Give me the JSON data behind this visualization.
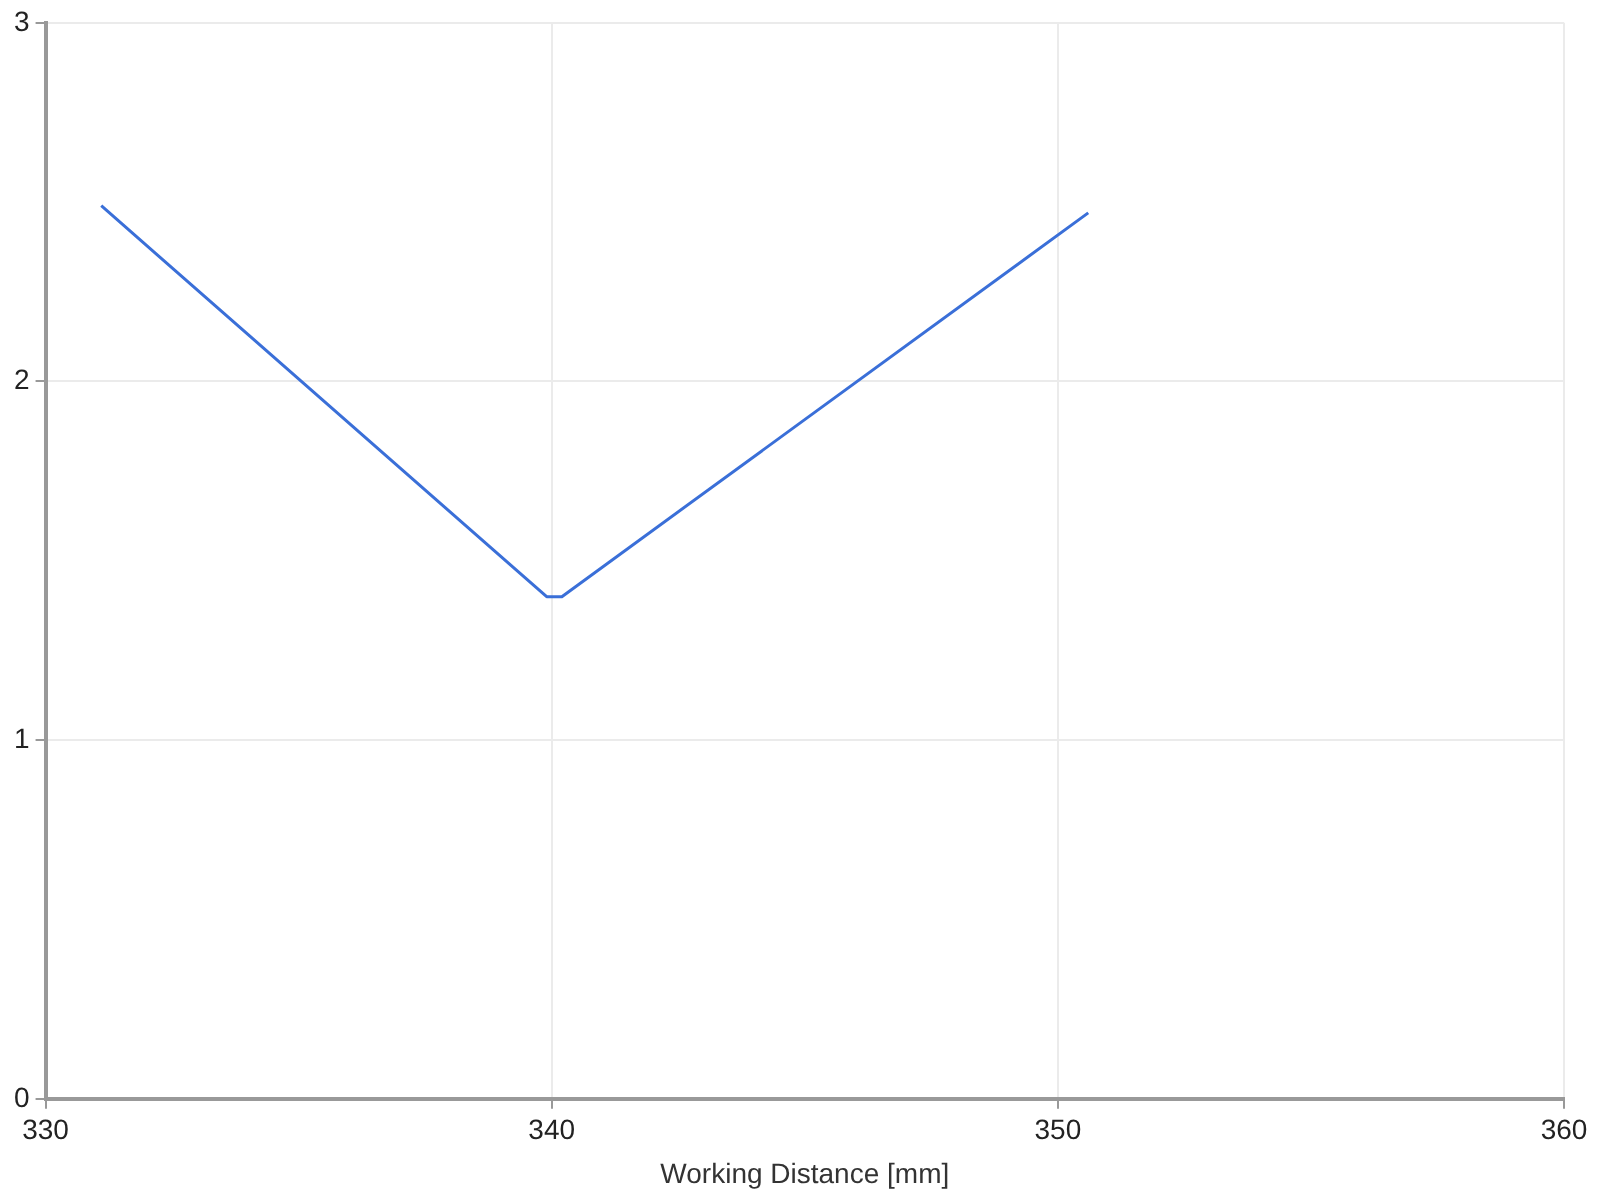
{
  "chart_data": {
    "type": "line",
    "xlabel": "Working Distance [mm]",
    "x": [
      331.1,
      339.9,
      340.2,
      350.6
    ],
    "series": [
      {
        "color": "#3a6fd8",
        "values": [
          2.49,
          1.4,
          1.4,
          2.47
        ]
      }
    ],
    "xlim": [
      330,
      360
    ],
    "xticks": [
      330,
      340,
      350,
      360
    ],
    "ylim": [
      0,
      3
    ],
    "yticks": [
      0,
      1,
      2,
      3
    ],
    "grid": true,
    "legend": false,
    "marker": "none",
    "line_style": "solid"
  }
}
